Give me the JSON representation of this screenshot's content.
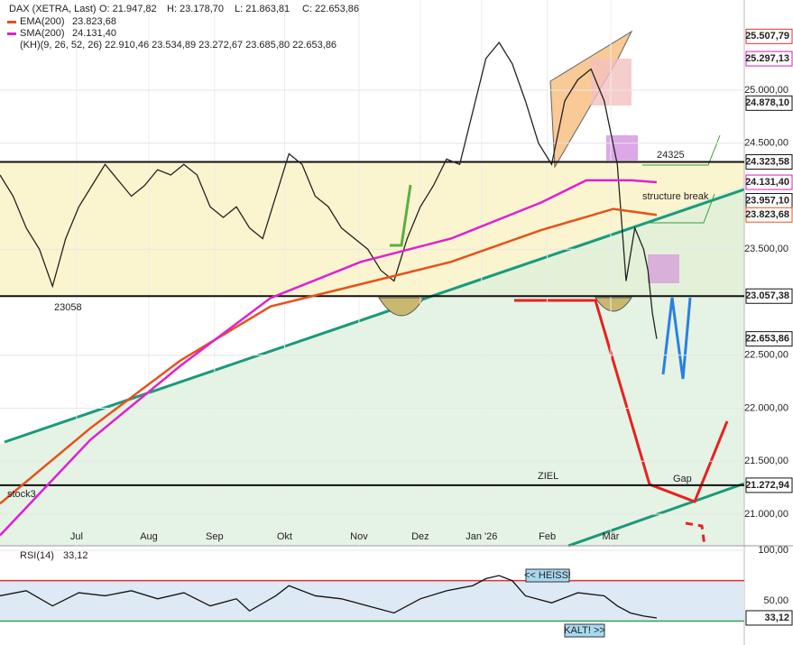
{
  "chart_data": [
    {
      "type": "line",
      "title": "DAX (XETRA, Last)",
      "ohlc": [
        "O: 21.947,82",
        "H: 23.178,70",
        "L: 21.863,81",
        "C: 22.653,86"
      ],
      "indicator_note": "(KH)(9, 26, 52, 26)  22.910,46  23.534,89  23.272,67  23.685,80  22.653,86",
      "xlim": [
        0,
        170
      ],
      "ylim": [
        20702,
        25851
      ],
      "grid": true,
      "xticks": [
        {
          "value": 17.5,
          "label": "Jul"
        },
        {
          "value": 34,
          "label": "Aug"
        },
        {
          "value": 49,
          "label": "Sep"
        },
        {
          "value": 65,
          "label": "Okt"
        },
        {
          "value": 82,
          "label": "Nov"
        },
        {
          "value": 96,
          "label": "Dez"
        },
        {
          "value": 110,
          "label": "Jan '26"
        },
        {
          "value": 125,
          "label": "Feb"
        },
        {
          "value": 139.5,
          "label": "Mär"
        }
      ],
      "yticks": [
        {
          "value": 25000,
          "label": "25.000,00"
        },
        {
          "value": 24500,
          "label": "24.500,00"
        },
        {
          "value": 23500,
          "label": "23.500,00"
        },
        {
          "value": 22500,
          "label": "22.500,00"
        },
        {
          "value": 22000,
          "label": "22.000,00"
        },
        {
          "value": 21500,
          "label": "21.500,00"
        },
        {
          "value": 21000,
          "label": "21.000,00"
        }
      ],
      "series": [
        {
          "name": "DAX (XETRA, Last)",
          "color": "#222222",
          "x": [
            0,
            3,
            6,
            9,
            12,
            15,
            18,
            21,
            24,
            27,
            30,
            33,
            36,
            39,
            42,
            45,
            48,
            51,
            54,
            57,
            60,
            63,
            66,
            69,
            72,
            75,
            78,
            81,
            84,
            87,
            90,
            93,
            96,
            99,
            102,
            105,
            108,
            111,
            114,
            117,
            120,
            123,
            126,
            129,
            132,
            135,
            138,
            141,
            143,
            145,
            147,
            148,
            149,
            150
          ],
          "values": [
            24200,
            24000,
            23700,
            23500,
            23150,
            23600,
            23900,
            24100,
            24300,
            24150,
            24000,
            24100,
            24250,
            24200,
            24300,
            24200,
            23900,
            23800,
            23900,
            23700,
            23600,
            24000,
            24400,
            24300,
            24000,
            23900,
            23700,
            23600,
            23500,
            23300,
            23200,
            23600,
            23900,
            24100,
            24350,
            24300,
            24800,
            25300,
            25450,
            25250,
            24900,
            24500,
            24300,
            24900,
            25100,
            25200,
            24900,
            24300,
            23200,
            23700,
            23500,
            23300,
            22900,
            22653.86
          ]
        },
        {
          "name": "EMA(200)",
          "legend_value": "23.823,68",
          "color": "#e8501a",
          "x": [
            0,
            20.6,
            41.2,
            61.8,
            82.4,
            103,
            123.6,
            140.1,
            150
          ],
          "values": [
            21100,
            21810,
            22450,
            22960,
            23170,
            23380,
            23680,
            23880,
            23823.68
          ]
        },
        {
          "name": "SMA(200)",
          "legend_value": "24.131,40",
          "color": "#e020d0",
          "x": [
            0,
            20.6,
            41.2,
            61.8,
            82.4,
            103,
            123.6,
            133.9,
            144.2,
            150
          ],
          "values": [
            20800,
            21700,
            22400,
            23040,
            23380,
            23600,
            23940,
            24150,
            24150,
            24131.4
          ]
        }
      ],
      "levels": [
        {
          "value": 25507.79,
          "label": "25.507,79",
          "color": "#e03030"
        },
        {
          "value": 25297.13,
          "label": "25.297,13",
          "color": "#d020c0"
        },
        {
          "value": 24878.1,
          "label": "24.878,10",
          "color": "#111111"
        },
        {
          "value": 24323.58,
          "label": "24.323,58",
          "color": "#111111",
          "line": true
        },
        {
          "value": 24131.4,
          "label": "24.131,40",
          "color": "#d020c0"
        },
        {
          "value": 23957.1,
          "label": "23.957,10",
          "color": "#111111"
        },
        {
          "value": 23823.68,
          "label": "23.823,68",
          "color": "#e8501a"
        },
        {
          "value": 23057.38,
          "label": "23.057,38",
          "color": "#111111",
          "line": true
        },
        {
          "value": 22653.86,
          "label": "22.653,86",
          "color": "#111111"
        },
        {
          "value": 21272.94,
          "label": "21.272,94",
          "color": "#111111",
          "line": true
        }
      ],
      "annotations": [
        "23058",
        "24325",
        "structure break",
        "ZIEL",
        "Gap",
        "stock3"
      ]
    },
    {
      "type": "line",
      "title": "RSI(14)",
      "legend_value": "33,12",
      "xlim": [
        0,
        170
      ],
      "ylim": [
        6.3,
        104.5
      ],
      "yticks": [
        {
          "value": 100,
          "label": "100,00"
        },
        {
          "value": 50,
          "label": "50,00"
        }
      ],
      "bands": [
        70,
        30
      ],
      "value_box": {
        "value": 33.12,
        "label": "33,12"
      },
      "notes": [
        "<< HEISS!",
        "KALT! >>"
      ],
      "series": [
        {
          "name": "RSI(14)",
          "color": "#111111",
          "x": [
            0,
            6,
            12,
            18,
            24,
            30,
            36,
            42,
            48,
            54,
            57,
            63,
            66,
            72,
            78,
            84,
            90,
            96,
            102,
            108,
            111,
            114,
            117,
            120,
            126,
            132,
            138,
            141,
            144,
            147,
            150
          ],
          "values": [
            55,
            60,
            45,
            58,
            55,
            60,
            52,
            58,
            45,
            52,
            40,
            55,
            65,
            55,
            52,
            45,
            38,
            52,
            60,
            65,
            72,
            75,
            70,
            55,
            48,
            58,
            55,
            45,
            38,
            35,
            33.12
          ]
        }
      ]
    }
  ]
}
